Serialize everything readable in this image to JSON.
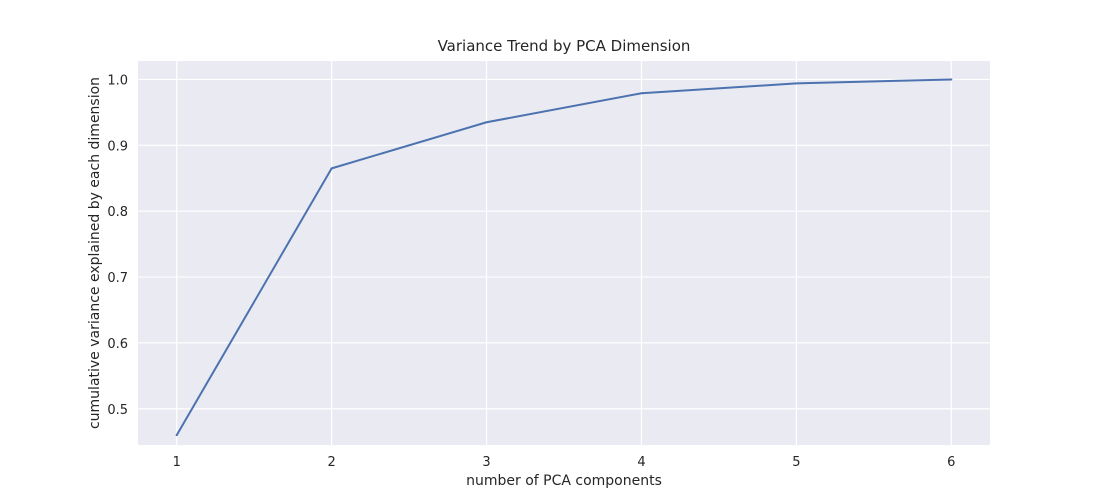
{
  "chart_data": {
    "type": "line",
    "title": "Variance Trend by PCA Dimension",
    "xlabel": "number of PCA components",
    "ylabel": "cumulative variance explained by each dimension",
    "x": [
      1,
      2,
      3,
      4,
      5,
      6
    ],
    "x_ticks": [
      "1",
      "2",
      "3",
      "4",
      "5",
      "6"
    ],
    "y_ticks": [
      "0.5",
      "0.6",
      "0.7",
      "0.8",
      "0.9",
      "1.0"
    ],
    "y_tick_values": [
      0.5,
      0.6,
      0.7,
      0.8,
      0.9,
      1.0
    ],
    "series": [
      {
        "values": [
          0.46,
          0.865,
          0.935,
          0.979,
          0.994,
          1.0
        ]
      }
    ],
    "xlim": [
      0.75,
      6.25
    ],
    "ylim": [
      0.445,
      1.028
    ],
    "grid": true,
    "colors": {
      "background": "#eaeaf2",
      "grid": "#ffffff",
      "line": "#4c72b0",
      "text": "#262626"
    }
  }
}
